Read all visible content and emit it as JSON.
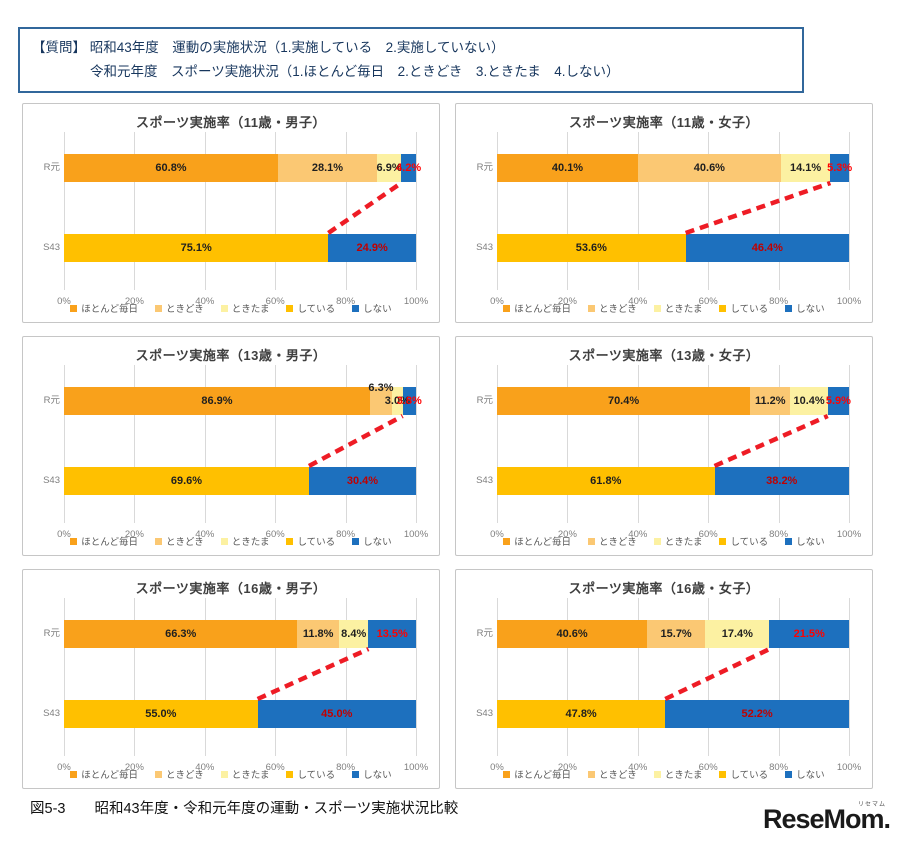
{
  "question_box": {
    "line1": "【質問】 昭和43年度　運動の実施状況（1.実施している　2.実施していない）",
    "line2": "令和元年度　スポーツ実施状況（1.ほとんど毎日　2.ときどき　3.ときたま　4.しない）"
  },
  "caption": "図5-3　　昭和43年度・令和元年度の運動・スポーツ実施状況比較",
  "logo": {
    "text": "ReseMom.",
    "ruby": "リセマム"
  },
  "chart_data": {
    "type": "bar",
    "subtype": "stacked-horizontal",
    "grid": true,
    "xlim": [
      0,
      100
    ],
    "x_ticks": [
      "0%",
      "20%",
      "40%",
      "60%",
      "80%",
      "100%"
    ],
    "row_labels": {
      "top": "R元",
      "bottom": "S43"
    },
    "legend": [
      "ほとんど毎日",
      "ときどき",
      "ときたま",
      "している",
      "しない"
    ],
    "legend_position": "bottom",
    "colors": {
      "ほとんど毎日": "#F9A11B",
      "ときどき": "#FBC873",
      "ときたま": "#FCF1A2",
      "している": "#FFC000",
      "しない": "#1D70BE"
    },
    "label_colors": {
      "default": "#1F1F1F",
      "shinai_r1": "#FF0000",
      "shinai_s43": "#C00000"
    },
    "trend_line_color": "#EE1C25",
    "charts": [
      {
        "title": "スポーツ実施率（11歳・男子）",
        "r1": {
          "ほとんど毎日": 60.8,
          "ときどき": 28.1,
          "ときたま": 6.9,
          "しない": 4.2
        },
        "s43": {
          "している": 75.1,
          "しない": 24.9
        }
      },
      {
        "title": "スポーツ実施率（11歳・女子）",
        "r1": {
          "ほとんど毎日": 40.1,
          "ときどき": 40.6,
          "ときたま": 14.1,
          "しない": 5.3
        },
        "s43": {
          "している": 53.6,
          "しない": 46.4
        }
      },
      {
        "title": "スポーツ実施率（13歳・男子）",
        "r1": {
          "ほとんど毎日": 86.9,
          "ときどき": 6.3,
          "ときたま": 3.0,
          "しない": 3.8
        },
        "s43": {
          "している": 69.6,
          "しない": 30.4
        }
      },
      {
        "title": "スポーツ実施率（13歳・女子）",
        "r1": {
          "ほとんど毎日": 70.4,
          "ときどき": 11.2,
          "ときたま": 10.4,
          "しない": 5.9
        },
        "s43": {
          "している": 61.8,
          "しない": 38.2
        }
      },
      {
        "title": "スポーツ実施率（16歳・男子）",
        "r1": {
          "ほとんど毎日": 66.3,
          "ときどき": 11.8,
          "ときたま": 8.4,
          "しない": 13.5
        },
        "s43": {
          "している": 55.0,
          "しない": 45.0
        }
      },
      {
        "title": "スポーツ実施率（16歳・女子）",
        "r1": {
          "ほとんど毎日": 40.6,
          "ときどき": 15.7,
          "ときたま": 17.4,
          "しない": 21.5
        },
        "s43": {
          "している": 47.8,
          "しない": 52.2
        }
      }
    ]
  }
}
